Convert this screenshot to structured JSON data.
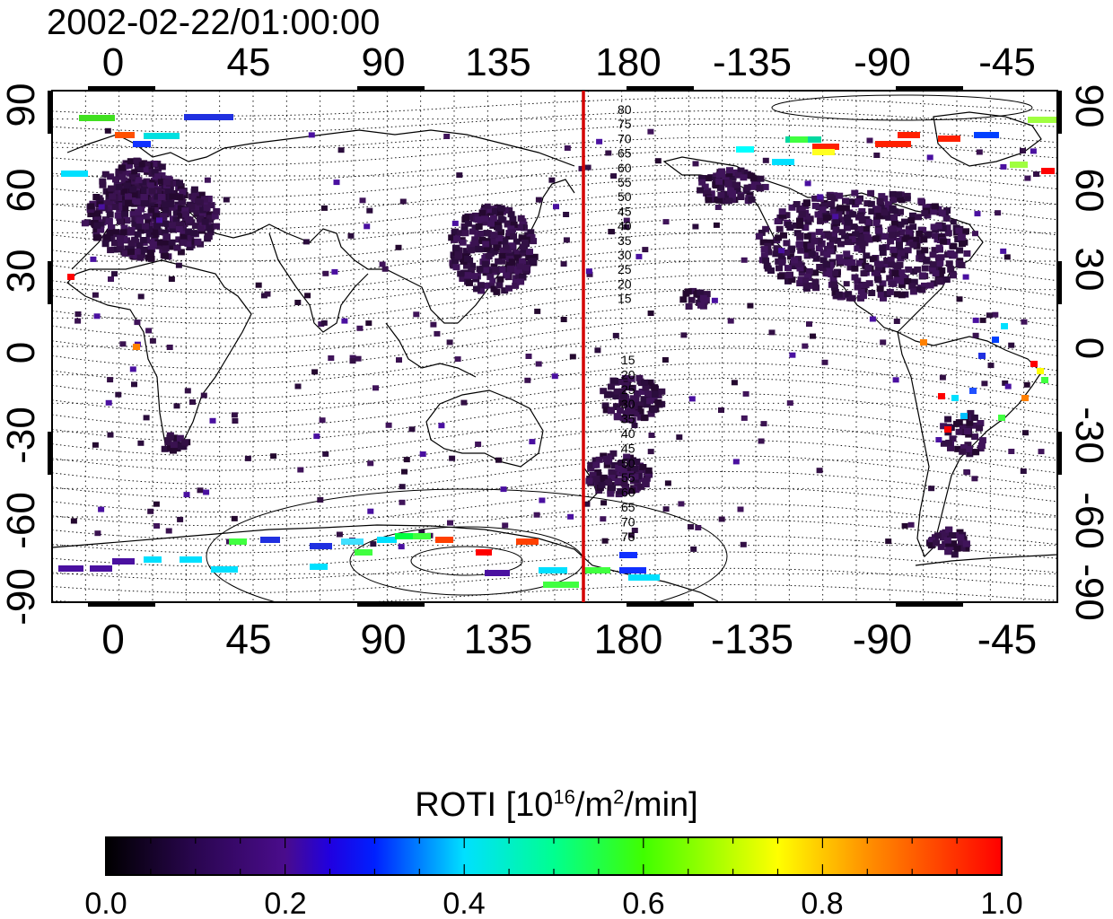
{
  "timestamp": "2002-02-22/01:00:00",
  "map": {
    "top_lon_ticks": [
      "0",
      "45",
      "90",
      "135",
      "180",
      "-135",
      "-90",
      "-45"
    ],
    "bottom_lon_ticks": [
      "0",
      "45",
      "90",
      "135",
      "180",
      "-135",
      "-90",
      "-45"
    ],
    "left_lat_ticks": [
      "90",
      "60",
      "30",
      "0",
      "-30",
      "-60",
      "-90"
    ],
    "right_lat_ticks": [
      "90",
      "60",
      "30",
      "0",
      "-30",
      "-60",
      "-90"
    ],
    "mag_lat_labels_north": [
      "80",
      "75",
      "70",
      "65",
      "60",
      "55",
      "50",
      "45",
      "40",
      "35",
      "30",
      "25",
      "20",
      "15"
    ],
    "mag_lat_labels_south": [
      "15",
      "20",
      "25",
      "30",
      "35",
      "40",
      "45",
      "50",
      "55",
      "60",
      "65",
      "70",
      "75"
    ],
    "terminator_line_color": "#d40000",
    "terminator_lon": 165
  },
  "colorbar": {
    "title_prefix": "ROTI  [10",
    "title_exp1": "16",
    "title_mid": "/m",
    "title_exp2": "2",
    "title_suffix": "/min]",
    "tick_labels": [
      "0.0",
      "0.2",
      "0.4",
      "0.6",
      "0.8",
      "1.0"
    ],
    "range": [
      0.0,
      1.0
    ],
    "palette": [
      "#000000",
      "#3a0a6a",
      "#5a109a",
      "#0000ff",
      "#00d8ff",
      "#00ff60",
      "#a0ff00",
      "#ffff00",
      "#ff8000",
      "#ff0000"
    ]
  }
}
